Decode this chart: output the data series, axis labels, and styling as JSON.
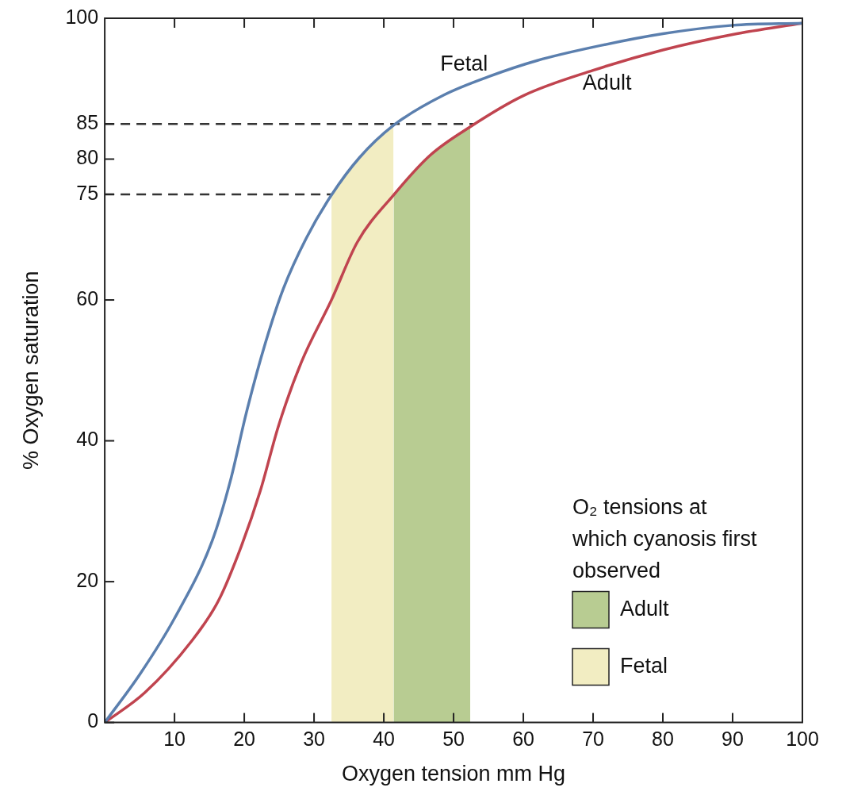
{
  "chart_data": {
    "type": "line",
    "xlabel": "Oxygen tension mm Hg",
    "ylabel": "% Oxygen saturation",
    "legend_title": "O₂ tensions at which cyanosis first observed",
    "legend": "bottom right",
    "marker": "none",
    "line_style": "solid",
    "grid": false,
    "xlim": [
      0,
      100
    ],
    "ylim": [
      0,
      100
    ],
    "xticks": [
      10,
      20,
      30,
      40,
      50,
      60,
      70,
      80,
      90,
      100
    ],
    "yticks": [
      0,
      20,
      40,
      60,
      75,
      80,
      85,
      100
    ],
    "series": [
      {
        "color": "#5b7fae",
        "x": [
          0,
          5,
          10,
          15.4,
          18,
          20.3,
          23,
          25.6,
          28.9,
          32.5,
          36.5,
          41.4,
          48.6,
          55,
          62,
          70,
          80,
          90,
          100
        ],
        "values": [
          0,
          6.8,
          14.8,
          25.8,
          34.3,
          44,
          53.8,
          61.6,
          68.8,
          74.9,
          80.2,
          84.8,
          89.1,
          91.7,
          94,
          95.9,
          97.8,
          99,
          99.3
        ]
      },
      {
        "color": "#c0444f",
        "x": [
          0,
          5.7,
          12.4,
          16.3,
          19.6,
          22.3,
          24.9,
          28.2,
          32.5,
          36.2,
          41.4,
          46.7,
          52.4,
          60,
          70,
          80,
          90,
          100
        ],
        "values": [
          0,
          4.2,
          11.5,
          17.3,
          25.1,
          32.9,
          42.1,
          51.2,
          60,
          68.2,
          74.9,
          80.6,
          84.6,
          89,
          92.6,
          95.5,
          97.7,
          99.3
        ]
      },
      {
        "type": "area",
        "name": "Adult",
        "color": "#b8cc92",
        "x": [
          41.4,
          44,
          46.7,
          49.5,
          52.4
        ],
        "values": [
          74.9,
          78,
          80.6,
          82.8,
          84.6
        ]
      },
      {
        "type": "area",
        "name": "Fetal",
        "color": "#f2edc2",
        "x": [
          32.5,
          34.5,
          36.5,
          39,
          41.4
        ],
        "values": [
          74.9,
          77.8,
          80.2,
          82.7,
          84.8
        ]
      }
    ],
    "ref_lines": [
      {
        "axis": "y",
        "value": 85,
        "color": "#333333",
        "line_style": "dashed"
      },
      {
        "axis": "y",
        "value": 75,
        "color": "#333333",
        "line_style": "dashed"
      }
    ],
    "annotations": [
      "Fetal",
      "Adult"
    ]
  }
}
